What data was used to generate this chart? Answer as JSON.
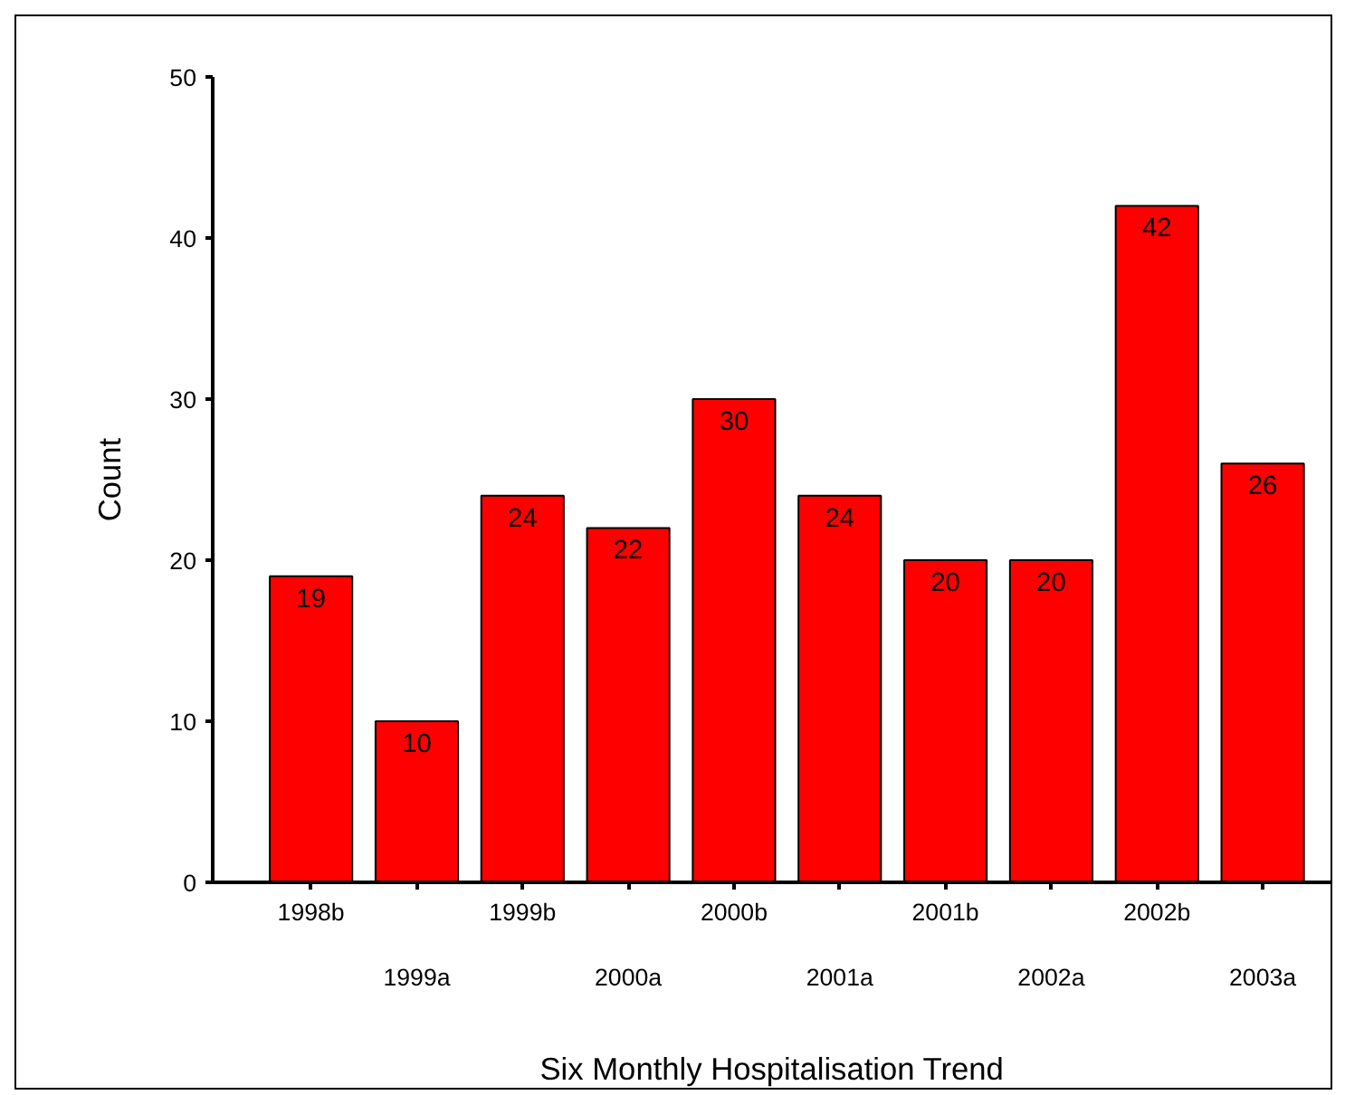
{
  "chart_data": {
    "type": "bar",
    "xlabel": "Six Monthly Hospitalisation Trend",
    "ylabel": "Count",
    "categories": [
      "1998b",
      "1999a",
      "1999b",
      "2000a",
      "2000b",
      "2001a",
      "2001b",
      "2002a",
      "2002b",
      "2003a"
    ],
    "values": [
      19,
      10,
      24,
      22,
      30,
      24,
      20,
      20,
      42,
      26
    ],
    "color": "#ff0000",
    "data_labels": true,
    "ylim": [
      0,
      50
    ],
    "yticks": [
      0,
      10,
      20,
      30,
      40,
      50
    ],
    "grid": false
  }
}
